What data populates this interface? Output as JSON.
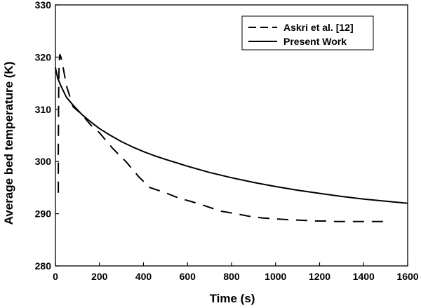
{
  "chart_data": {
    "type": "line",
    "xlabel": "Time (s)",
    "ylabel": "Average bed temperature (K)",
    "xlim": [
      0,
      1600
    ],
    "ylim": [
      280,
      330
    ],
    "x_ticks": [
      0,
      200,
      400,
      600,
      800,
      1000,
      1200,
      1400,
      1600
    ],
    "y_ticks": [
      280,
      290,
      300,
      310,
      320,
      330
    ],
    "grid": false,
    "legend_position": "top-right",
    "series": [
      {
        "name": "Askri et al. [12]",
        "style": "dashed",
        "x": [
          13,
          13,
          14,
          15,
          17,
          20,
          25,
          35,
          50,
          80,
          120,
          160,
          200,
          260,
          320,
          380,
          430,
          500,
          560,
          620,
          680,
          750,
          820,
          880,
          940,
          1000,
          1080,
          1140,
          1180,
          1220,
          1280,
          1350,
          1420,
          1520
        ],
        "y": [
          294,
          302,
          309,
          315,
          319,
          320.5,
          320,
          318,
          314.5,
          310.5,
          309,
          307,
          305.5,
          302.5,
          300,
          297,
          295,
          294,
          293,
          292.3,
          291.5,
          290.5,
          290,
          289.5,
          289.2,
          289,
          288.8,
          288.7,
          288.6,
          288.6,
          288.5,
          288.5,
          288.5,
          288.5
        ]
      },
      {
        "name": "Present Work",
        "style": "solid",
        "x": [
          0,
          10,
          25,
          50,
          80,
          120,
          160,
          200,
          250,
          300,
          350,
          400,
          450,
          500,
          600,
          700,
          800,
          900,
          1000,
          1100,
          1200,
          1300,
          1400,
          1500,
          1600
        ],
        "y": [
          318,
          316,
          314.5,
          312.3,
          310.8,
          309,
          307.6,
          306.3,
          305,
          303.8,
          302.8,
          301.9,
          301.1,
          300.4,
          299.1,
          297.9,
          296.9,
          296,
          295.2,
          294.5,
          293.9,
          293.3,
          292.8,
          292.4,
          292
        ]
      }
    ]
  },
  "colors": {
    "line": "#000000",
    "background": "#ffffff"
  }
}
